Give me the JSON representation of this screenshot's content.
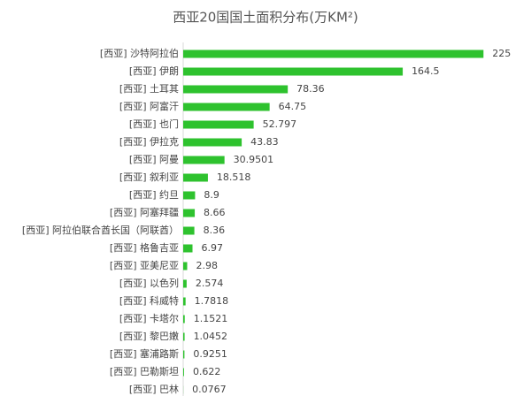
{
  "chart_data": {
    "type": "barh",
    "title": "西亚20国国土面积分布(万KM²)",
    "categories": [
      "[西亚] 沙特阿拉伯",
      "[西亚] 伊朗",
      "[西亚] 土耳其",
      "[西亚] 阿富汗",
      "[西亚] 也门",
      "[西亚] 伊拉克",
      "[西亚] 阿曼",
      "[西亚] 叙利亚",
      "[西亚] 约旦",
      "[西亚] 阿塞拜疆",
      "[西亚] 阿拉伯联合酋长国（阿联酋）",
      "[西亚] 格鲁吉亚",
      "[西亚] 亚美尼亚",
      "[西亚] 以色列",
      "[西亚] 科威特",
      "[西亚] 卡塔尔",
      "[西亚] 黎巴嫩",
      "[西亚] 塞浦路斯",
      "[西亚] 巴勒斯坦",
      "[西亚] 巴林"
    ],
    "values": [
      225,
      164.5,
      78.36,
      64.75,
      52.797,
      43.83,
      30.9501,
      18.518,
      8.9,
      8.66,
      8.36,
      6.97,
      2.98,
      2.574,
      1.7818,
      1.1521,
      1.0452,
      0.9251,
      0.622,
      0.0767
    ],
    "color": "#2ec22e",
    "xlim": [
      0,
      250
    ]
  }
}
